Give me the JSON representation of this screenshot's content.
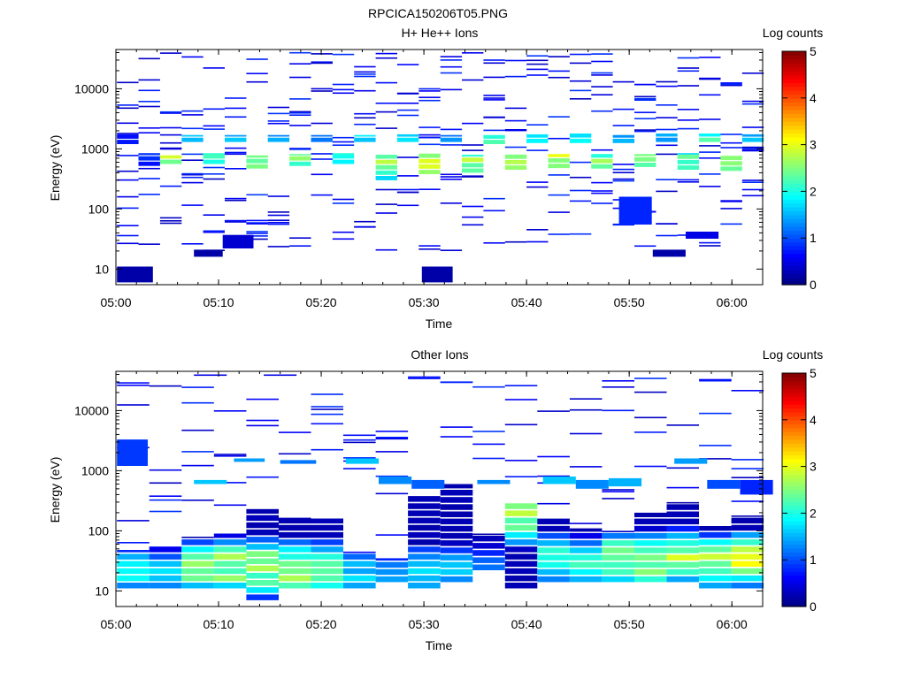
{
  "title": "RPCICA150206T05.PNG",
  "chart_data": [
    {
      "type": "heatmap",
      "title": "H+ He++ Ions",
      "xlabel": "Time",
      "ylabel": "Energy (eV)",
      "x_ticks": [
        "05:00",
        "05:10",
        "05:20",
        "05:30",
        "05:40",
        "05:50",
        "06:00"
      ],
      "xlim_minutes": [
        0,
        63
      ],
      "y_scale": "log",
      "ylim": [
        5.5,
        45000
      ],
      "y_ticks": [
        {
          "value": 10,
          "label": "10"
        },
        {
          "value": 100,
          "label": "100"
        },
        {
          "value": 1000,
          "label": "1000"
        },
        {
          "value": 10000,
          "label": "10000"
        }
      ],
      "colorbar": {
        "label": "Log counts",
        "range": [
          0,
          5
        ],
        "ticks": [
          "0",
          "1",
          "2",
          "3",
          "4",
          "5"
        ]
      },
      "core": [
        [
          1400,
          0.8,
          1.5,
          1850,
          1200
        ],
        [
          700,
          0.9,
          1.4,
          850,
          520
        ],
        [
          650,
          2.8,
          1.8,
          780,
          560
        ],
        [
          1500,
          1.8,
          1.4,
          1700,
          1300
        ],
        [
          700,
          2.2,
          1.3,
          850,
          560
        ],
        [
          1500,
          1.5,
          1.2,
          1700,
          1300
        ],
        [
          600,
          2.5,
          1.4,
          780,
          470
        ],
        [
          1500,
          1.3,
          1.0,
          1700,
          1300
        ],
        [
          650,
          2.5,
          1.3,
          820,
          520
        ],
        [
          1500,
          1.3,
          1.1,
          1700,
          1300
        ],
        [
          700,
          2.0,
          1.3,
          850,
          560
        ],
        [
          1500,
          1.7,
          1.0,
          1700,
          1300
        ],
        [
          600,
          2.6,
          1.5,
          800,
          300
        ],
        [
          1500,
          1.6,
          1.0,
          1750,
          1300
        ],
        [
          650,
          2.8,
          1.6,
          850,
          380
        ],
        [
          1500,
          1.4,
          1.0,
          1700,
          1300
        ],
        [
          600,
          2.7,
          1.5,
          800,
          400
        ],
        [
          1450,
          2.4,
          1.0,
          1700,
          1200
        ],
        [
          650,
          2.6,
          1.5,
          820,
          450
        ],
        [
          1450,
          1.8,
          1.0,
          1750,
          1250
        ],
        [
          650,
          2.8,
          1.6,
          820,
          480
        ],
        [
          1450,
          1.8,
          1.0,
          1800,
          1250
        ],
        [
          650,
          2.4,
          1.5,
          820,
          470
        ],
        [
          1450,
          1.4,
          1.0,
          1700,
          1250
        ],
        [
          650,
          2.5,
          1.5,
          820,
          500
        ],
        [
          1500,
          1.5,
          1.0,
          1800,
          1300
        ],
        [
          650,
          2.2,
          1.6,
          850,
          450
        ],
        [
          1500,
          2.0,
          1.0,
          1800,
          1300
        ],
        [
          600,
          2.6,
          1.5,
          800,
          430
        ],
        [
          1500,
          1.6,
          1.0,
          1750,
          1300
        ]
      ],
      "speckle_min": 0.3,
      "speckle_max": 0.9,
      "speckle_count": 12,
      "extras": [
        [
          0.1,
          3.6,
          6,
          11,
          0.2
        ],
        [
          7.6,
          10.4,
          16,
          21,
          0.2
        ],
        [
          10.4,
          13.4,
          22,
          37,
          0.4
        ],
        [
          29.8,
          32.8,
          6,
          11,
          0.2
        ],
        [
          52.3,
          55.5,
          16,
          21,
          0.2
        ],
        [
          55.5,
          58.7,
          32,
          42,
          0.5
        ],
        [
          49.0,
          52.2,
          55,
          160,
          0.8
        ]
      ]
    },
    {
      "type": "heatmap",
      "title": "Other Ions",
      "xlabel": "Time",
      "ylabel": "Energy (eV)",
      "x_ticks": [
        "05:00",
        "05:10",
        "05:20",
        "05:30",
        "05:40",
        "05:50",
        "06:00"
      ],
      "xlim_minutes": [
        0,
        63
      ],
      "y_scale": "log",
      "ylim": [
        5.5,
        45000
      ],
      "y_ticks": [
        {
          "value": 10,
          "label": "10"
        },
        {
          "value": 100,
          "label": "100"
        },
        {
          "value": 1000,
          "label": "1000"
        },
        {
          "value": 10000,
          "label": "10000"
        }
      ],
      "colorbar": {
        "label": "Log counts",
        "range": [
          0,
          5
        ],
        "ticks": [
          "0",
          "1",
          "2",
          "3",
          "4",
          "5"
        ]
      },
      "core": [
        [
          22,
          1.8,
          1.4,
          48,
          11
        ],
        [
          20,
          1.6,
          1.3,
          55,
          11
        ],
        [
          24,
          2.4,
          1.5,
          80,
          11
        ],
        [
          26,
          2.6,
          1.5,
          90,
          11
        ],
        [
          25,
          2.6,
          1.5,
          230,
          7
        ],
        [
          24,
          2.6,
          1.5,
          170,
          11
        ],
        [
          24,
          2.4,
          1.4,
          160,
          11
        ],
        [
          20,
          1.6,
          1.3,
          45,
          11
        ],
        [
          18,
          1.4,
          1.3,
          35,
          14
        ],
        [
          22,
          1.8,
          1.4,
          380,
          11
        ],
        [
          24,
          1.6,
          1.4,
          600,
          14
        ],
        [
          24,
          1.3,
          1.3,
          90,
          22
        ],
        [
          160,
          2.6,
          1.8,
          300,
          11
        ],
        [
          35,
          2.0,
          1.5,
          160,
          14
        ],
        [
          28,
          2.2,
          1.5,
          110,
          14
        ],
        [
          33,
          2.6,
          1.6,
          100,
          14
        ],
        [
          32,
          2.6,
          1.5,
          200,
          14
        ],
        [
          38,
          2.6,
          1.7,
          300,
          14
        ],
        [
          31,
          2.6,
          1.7,
          120,
          11
        ],
        [
          33,
          2.8,
          1.7,
          180,
          11
        ]
      ],
      "speckle_min": 0.3,
      "speckle_max": 0.9,
      "speckle_count": 7,
      "extras": [
        [
          0.1,
          3.1,
          1200,
          3300,
          0.9
        ],
        [
          7.6,
          10.8,
          600,
          700,
          1.6
        ],
        [
          11.5,
          14.5,
          1400,
          1600,
          1.4
        ],
        [
          16.0,
          19.5,
          1300,
          1500,
          1.2
        ],
        [
          22.4,
          25.6,
          1300,
          1600,
          1.6
        ],
        [
          25.6,
          28.8,
          600,
          800,
          1.3
        ],
        [
          28.8,
          32.0,
          500,
          700,
          1.1
        ],
        [
          35.2,
          38.4,
          600,
          700,
          1.3
        ],
        [
          41.6,
          44.8,
          600,
          800,
          1.6
        ],
        [
          44.8,
          48.0,
          500,
          700,
          1.3
        ],
        [
          48.0,
          51.2,
          550,
          750,
          1.5
        ],
        [
          54.4,
          57.6,
          1300,
          1600,
          1.4
        ],
        [
          57.6,
          60.8,
          500,
          700,
          1.0
        ],
        [
          60.8,
          64.0,
          400,
          700,
          0.8
        ],
        [
          7.6,
          10.8,
          38000,
          40000,
          0.5
        ],
        [
          14.4,
          17.6,
          38000,
          40000,
          0.5
        ]
      ]
    }
  ]
}
